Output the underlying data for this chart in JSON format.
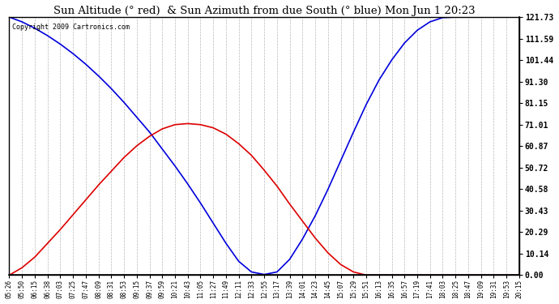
{
  "title": "Sun Altitude (° red)  & Sun Azimuth from due South (° blue) Mon Jun 1 20:23",
  "copyright_text": "Copyright 2009 Cartronics.com",
  "background_color": "#ffffff",
  "plot_bg_color": "#ffffff",
  "grid_color": "#888888",
  "line_blue_color": "#0000dd",
  "line_red_color": "#dd0000",
  "ymin": 0.0,
  "ymax": 121.73,
  "yticks": [
    0.0,
    10.14,
    20.29,
    30.43,
    40.58,
    50.72,
    60.87,
    71.01,
    81.15,
    91.3,
    101.44,
    111.59,
    121.73
  ],
  "time_labels": [
    "05:26",
    "05:50",
    "06:15",
    "06:38",
    "07:03",
    "07:25",
    "07:47",
    "08:09",
    "08:31",
    "08:53",
    "09:15",
    "09:37",
    "09:59",
    "10:21",
    "10:43",
    "11:05",
    "11:27",
    "11:49",
    "12:11",
    "12:33",
    "12:55",
    "13:17",
    "13:39",
    "14:01",
    "14:23",
    "14:45",
    "15:07",
    "15:29",
    "15:51",
    "16:13",
    "16:35",
    "16:57",
    "17:19",
    "17:41",
    "18:03",
    "18:25",
    "18:47",
    "19:09",
    "19:31",
    "19:53",
    "20:15"
  ],
  "sun_altitude": [
    0.0,
    3.5,
    8.5,
    15.0,
    21.5,
    28.5,
    35.5,
    42.5,
    49.0,
    55.5,
    61.0,
    65.5,
    69.0,
    71.0,
    71.5,
    71.0,
    69.5,
    66.5,
    62.0,
    56.5,
    49.5,
    42.0,
    33.5,
    25.5,
    17.5,
    10.5,
    5.0,
    1.5,
    0.0,
    0.0,
    0.0,
    0.0,
    0.0,
    0.0,
    0.0,
    0.0,
    0.0,
    0.0,
    0.0,
    0.0,
    0.0
  ],
  "sun_azimuth": [
    121.73,
    119.5,
    116.5,
    113.0,
    109.0,
    104.5,
    99.5,
    94.0,
    88.0,
    81.5,
    74.5,
    67.5,
    59.5,
    51.5,
    43.0,
    34.0,
    24.5,
    15.0,
    6.5,
    1.5,
    0.3,
    1.5,
    7.5,
    17.0,
    28.0,
    40.5,
    54.0,
    67.5,
    80.5,
    92.0,
    101.5,
    109.5,
    115.5,
    119.5,
    121.5,
    121.73,
    121.73,
    121.73,
    121.73,
    121.73,
    121.73
  ]
}
